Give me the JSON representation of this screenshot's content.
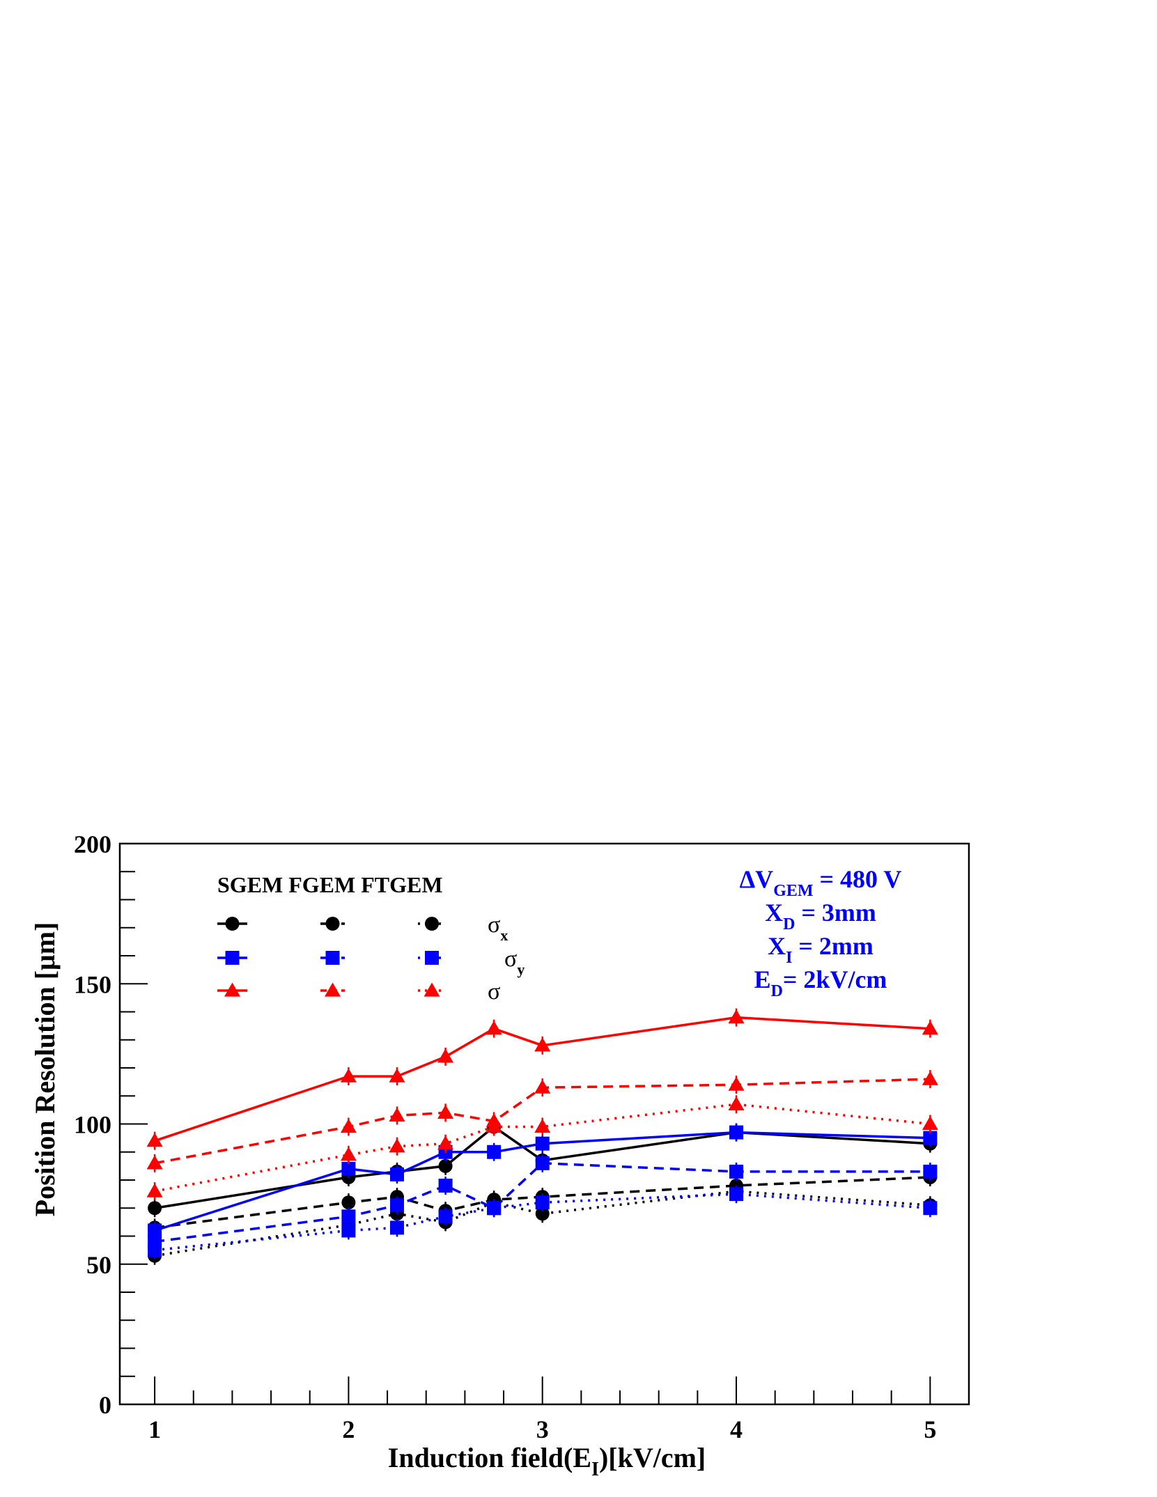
{
  "chart_data": {
    "type": "line",
    "xlabel": "Induction field(E_I)[kV/cm]",
    "xlabel_parts": {
      "main": "Induction field(E",
      "sub": "I",
      "tail": ")[kV/cm]"
    },
    "ylabel": "Position Resolution [μm]",
    "xlim": [
      0.82,
      5.2
    ],
    "ylim": [
      0,
      200
    ],
    "xticks": [
      1,
      2,
      3,
      4,
      5
    ],
    "yticks": [
      0,
      50,
      100,
      150,
      200
    ],
    "grid": false,
    "legend_position": "top-left",
    "legend": {
      "headers": "SGEM FGEM FTGEM",
      "rows": [
        {
          "symbol": "σ",
          "subscript": "x",
          "color": "#000000",
          "marker": "circle"
        },
        {
          "symbol": "σ",
          "subscript": "y",
          "color": "#0000ff",
          "marker": "square"
        },
        {
          "symbol": "σ",
          "subscript": "",
          "color": "#ff0000",
          "marker": "triangle"
        }
      ]
    },
    "annotation": {
      "lines": [
        {
          "main": "ΔV",
          "sub": "GEM",
          "tail": " = 480 V"
        },
        {
          "main": "X",
          "sub": "D",
          "tail": " = 3mm"
        },
        {
          "main": "X",
          "sub": "I",
          "tail": " = 2mm"
        },
        {
          "main": "E",
          "sub": "D",
          "tail": "= 2kV/cm"
        }
      ],
      "color": "#0000ff"
    },
    "series": [
      {
        "quantity": "sigma_x",
        "detector": "SGEM",
        "color": "#000000",
        "marker": "circle",
        "line": "solid",
        "x": [
          1,
          2,
          2.25,
          2.5,
          2.75,
          3,
          4,
          5
        ],
        "y": [
          70,
          81,
          83,
          85,
          99,
          87,
          97,
          93
        ]
      },
      {
        "quantity": "sigma_x",
        "detector": "FGEM",
        "color": "#000000",
        "marker": "circle",
        "line": "dashed",
        "x": [
          1,
          2,
          2.25,
          2.5,
          2.75,
          3,
          4,
          5
        ],
        "y": [
          63,
          72,
          74,
          69,
          73,
          74,
          78,
          81
        ]
      },
      {
        "quantity": "sigma_x",
        "detector": "FTGEM",
        "color": "#000000",
        "marker": "circle",
        "line": "dotted",
        "x": [
          1,
          2,
          2.25,
          2.5,
          2.75,
          3,
          4,
          5
        ],
        "y": [
          53,
          64,
          68,
          65,
          72,
          68,
          76,
          71
        ]
      },
      {
        "quantity": "sigma_y",
        "detector": "SGEM",
        "color": "#0000ff",
        "marker": "square",
        "line": "solid",
        "x": [
          1,
          2,
          2.25,
          2.5,
          2.75,
          3,
          4,
          5
        ],
        "y": [
          62,
          84,
          82,
          90,
          90,
          93,
          97,
          95
        ]
      },
      {
        "quantity": "sigma_y",
        "detector": "FGEM",
        "color": "#0000ff",
        "marker": "square",
        "line": "dashed",
        "x": [
          1,
          2,
          2.25,
          2.5,
          2.75,
          3,
          4,
          5
        ],
        "y": [
          58,
          67,
          71,
          78,
          70,
          86,
          83,
          83
        ]
      },
      {
        "quantity": "sigma_y",
        "detector": "FTGEM",
        "color": "#0000ff",
        "marker": "square",
        "line": "dotted",
        "x": [
          1,
          2,
          2.25,
          2.5,
          2.75,
          3,
          4,
          5
        ],
        "y": [
          55,
          62,
          63,
          67,
          70,
          72,
          75,
          70
        ]
      },
      {
        "quantity": "sigma",
        "detector": "SGEM",
        "color": "#ff0000",
        "marker": "triangle",
        "line": "solid",
        "x": [
          1,
          2,
          2.25,
          2.5,
          2.75,
          3,
          4,
          5
        ],
        "y": [
          94,
          117,
          117,
          124,
          134,
          128,
          138,
          134
        ]
      },
      {
        "quantity": "sigma",
        "detector": "FGEM",
        "color": "#ff0000",
        "marker": "triangle",
        "line": "dashed",
        "x": [
          1,
          2,
          2.25,
          2.5,
          2.75,
          3,
          4,
          5
        ],
        "y": [
          86,
          99,
          103,
          104,
          101,
          113,
          114,
          116
        ]
      },
      {
        "quantity": "sigma",
        "detector": "FTGEM",
        "color": "#ff0000",
        "marker": "triangle",
        "line": "dotted",
        "x": [
          1,
          2,
          2.25,
          2.5,
          2.75,
          3,
          4,
          5
        ],
        "y": [
          76,
          89,
          92,
          93,
          99,
          99,
          107,
          100
        ]
      }
    ]
  }
}
